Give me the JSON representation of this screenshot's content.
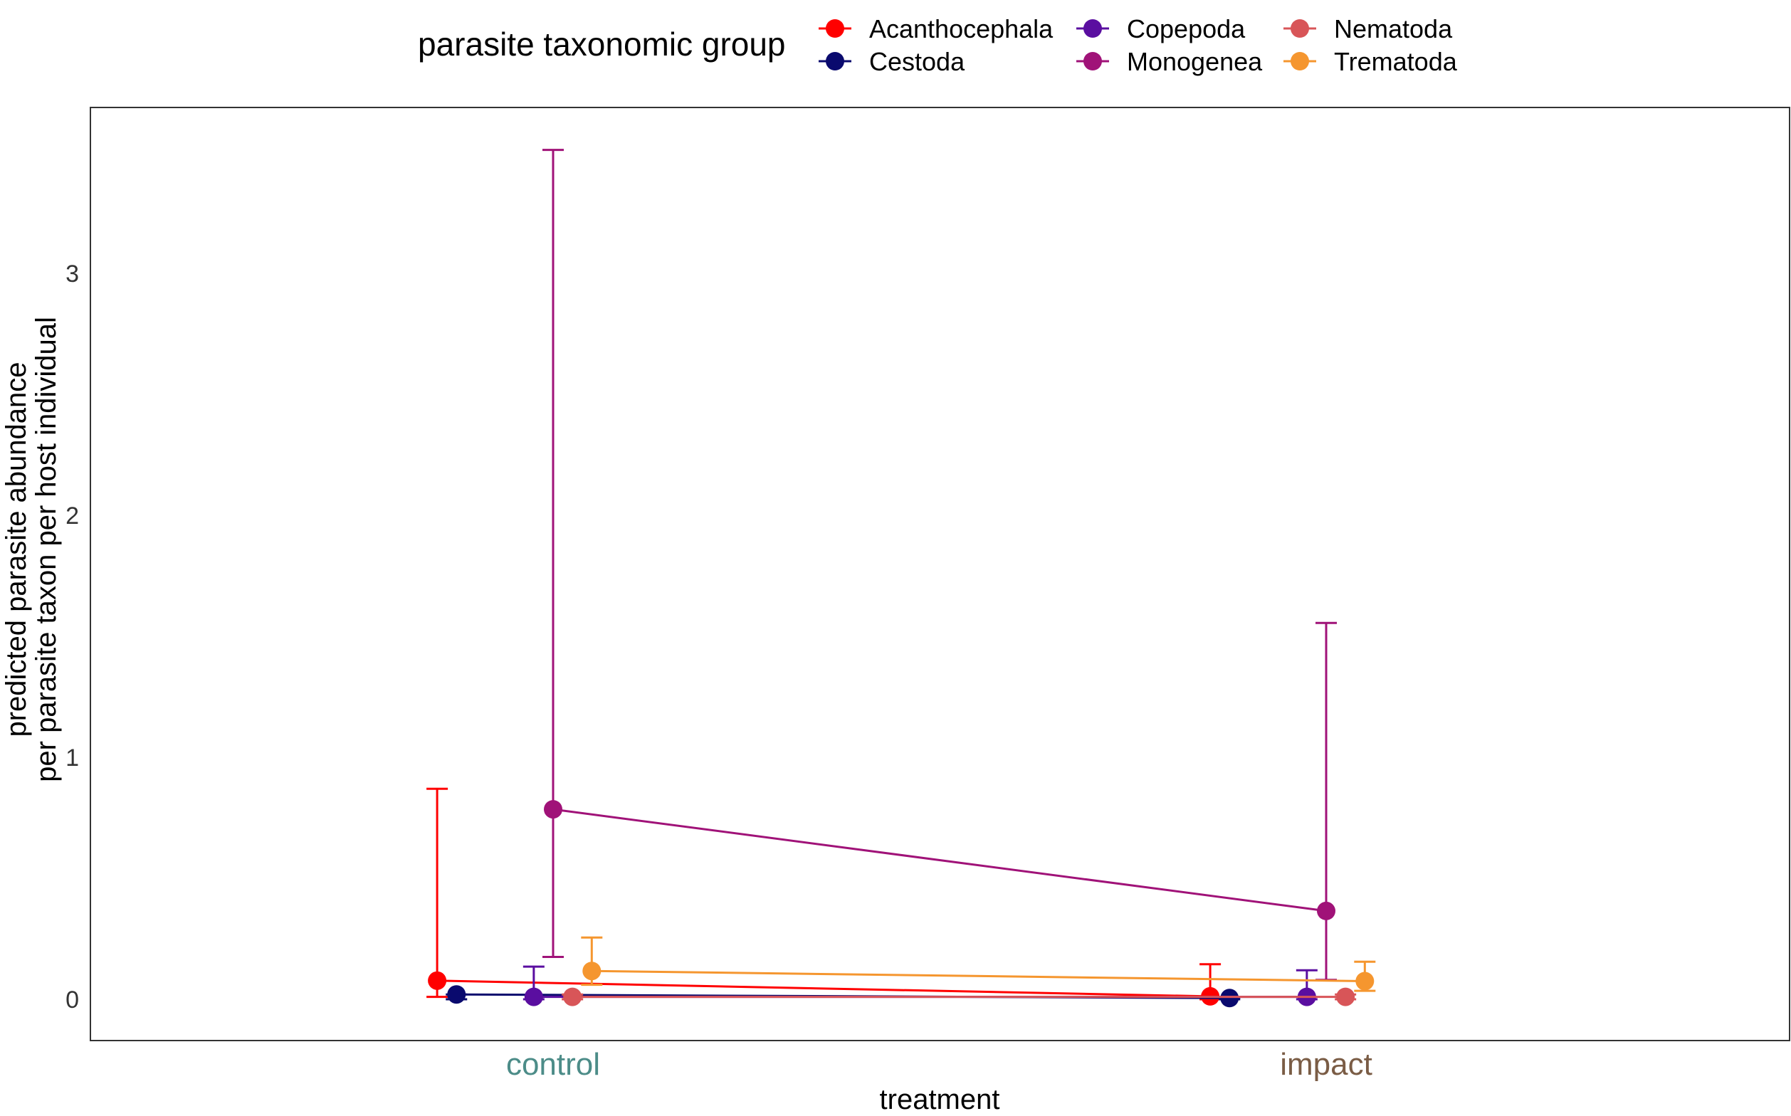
{
  "chart_data": {
    "type": "scatter",
    "title": "",
    "xlabel": "treatment",
    "ylabel": [
      "predicted parasite abundance",
      "per parasite taxon per host individual"
    ],
    "categories": [
      "control",
      "impact"
    ],
    "category_colors": [
      "#4C8C88",
      "#7A5C45"
    ],
    "ylim": [
      -0.17,
      3.69
    ],
    "yticks": [
      0,
      1,
      2,
      3
    ],
    "grid": false,
    "legend": {
      "title": "parasite taxonomic group",
      "position": "top"
    },
    "series": [
      {
        "name": "Acanthocephala",
        "color": "#FF0000",
        "offset": -0.3,
        "values": [
          0.077,
          0.012
        ],
        "lower": [
          0.01,
          0.0
        ],
        "upper": [
          0.87,
          0.145
        ]
      },
      {
        "name": "Cestoda",
        "color": "#0A0A6E",
        "offset": -0.25,
        "values": [
          0.02,
          0.005
        ],
        "lower": [
          0.0,
          0.0
        ],
        "upper": [
          0.02,
          0.005
        ]
      },
      {
        "name": "Copepoda",
        "color": "#5A0EA0",
        "offset": -0.05,
        "values": [
          0.01,
          0.01
        ],
        "lower": [
          0.0,
          0.0
        ],
        "upper": [
          0.135,
          0.12
        ]
      },
      {
        "name": "Monogenea",
        "color": "#A01278",
        "offset": 0.0,
        "values": [
          0.785,
          0.365
        ],
        "lower": [
          0.175,
          0.08
        ],
        "upper": [
          3.51,
          1.555
        ]
      },
      {
        "name": "Nematoda",
        "color": "#D85558",
        "offset": 0.05,
        "values": [
          0.01,
          0.01
        ],
        "lower": [
          0.0,
          0.0
        ],
        "upper": [
          0.02,
          0.02
        ]
      },
      {
        "name": "Trematoda",
        "color": "#F5962F",
        "offset": 0.1,
        "values": [
          0.117,
          0.075
        ],
        "lower": [
          0.06,
          0.035
        ],
        "upper": [
          0.255,
          0.155
        ]
      }
    ]
  }
}
